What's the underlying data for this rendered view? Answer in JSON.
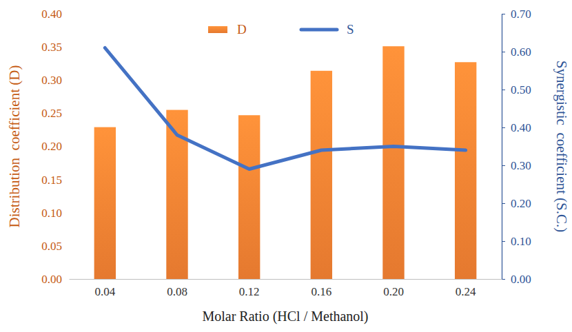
{
  "chart_data": {
    "type": "bar",
    "x_label": "Molar Ratio (HCl / Methanol)",
    "y_label": "Distribution  coefficient (D)",
    "y2_label": "Synergistic  coefficient (S.C.)",
    "categories": [
      "0.04",
      "0.08",
      "0.12",
      "0.16",
      "0.20",
      "0.24"
    ],
    "series": [
      {
        "name": "D",
        "type": "bar",
        "color": "#ed7d31",
        "values": [
          0.229,
          0.255,
          0.247,
          0.314,
          0.351,
          0.327
        ]
      },
      {
        "name": "S",
        "type": "line",
        "axis": "y2",
        "color": "#4472c4",
        "values": [
          0.61,
          0.38,
          0.29,
          0.34,
          0.35,
          0.34
        ]
      }
    ],
    "ylim": [
      0,
      0.4
    ],
    "yticks": [
      {
        "value": 0,
        "label": "0.00"
      },
      {
        "value": 0.05,
        "label": "0.05"
      },
      {
        "value": 0.1,
        "label": "0.10"
      },
      {
        "value": 0.15,
        "label": "0.15"
      },
      {
        "value": 0.2,
        "label": "0.20"
      },
      {
        "value": 0.25,
        "label": "0.25"
      },
      {
        "value": 0.3,
        "label": "0.30"
      },
      {
        "value": 0.35,
        "label": "0.35"
      },
      {
        "value": 0.4,
        "label": "0.40"
      }
    ],
    "y2lim": [
      0,
      0.7
    ],
    "y2ticks": [
      {
        "value": 0,
        "label": "0.00"
      },
      {
        "value": 0.1,
        "label": "0.10"
      },
      {
        "value": 0.2,
        "label": "0.20"
      },
      {
        "value": 0.3,
        "label": "0.30"
      },
      {
        "value": 0.4,
        "label": "0.40"
      },
      {
        "value": 0.5,
        "label": "0.50"
      },
      {
        "value": 0.6,
        "label": "0.60"
      },
      {
        "value": 0.7,
        "label": "0.70"
      }
    ],
    "grid": false,
    "legend": "top"
  }
}
